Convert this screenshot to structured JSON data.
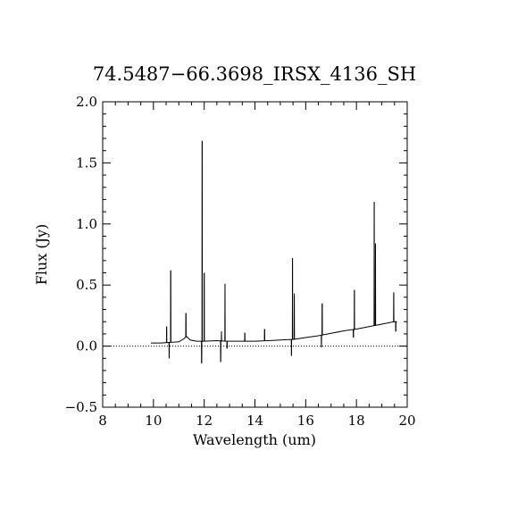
{
  "chart_data": {
    "type": "line",
    "title": "74.5487−66.3698_IRSX_4136_SH",
    "xlabel": "Wavelength (um)",
    "ylabel": "Flux (Jy)",
    "xlim": [
      8,
      20
    ],
    "ylim": [
      -0.5,
      2.0
    ],
    "x_ticks": [
      8,
      10,
      12,
      14,
      16,
      18,
      20
    ],
    "x_tick_labels": [
      "8",
      "10",
      "12",
      "14",
      "16",
      "18",
      "20"
    ],
    "y_ticks": [
      -0.5,
      0.0,
      0.5,
      1.0,
      1.5,
      2.0
    ],
    "y_tick_labels": [
      "−0.5",
      "0.0",
      "0.5",
      "1.0",
      "1.5",
      "2.0"
    ],
    "grid": false,
    "reference_line": {
      "y": 0,
      "style": "dotted"
    },
    "series": [
      {
        "color": "#000000",
        "continuum": [
          [
            9.9,
            0.025
          ],
          [
            10.3,
            0.025
          ],
          [
            10.6,
            0.03
          ],
          [
            11.0,
            0.035
          ],
          [
            11.2,
            0.06
          ],
          [
            11.3,
            0.08
          ],
          [
            11.45,
            0.05
          ],
          [
            11.7,
            0.04
          ],
          [
            12.0,
            0.04
          ],
          [
            12.5,
            0.045
          ],
          [
            12.9,
            0.04
          ],
          [
            13.5,
            0.04
          ],
          [
            14.0,
            0.04
          ],
          [
            14.5,
            0.045
          ],
          [
            15.0,
            0.05
          ],
          [
            15.5,
            0.055
          ],
          [
            16.0,
            0.07
          ],
          [
            16.5,
            0.085
          ],
          [
            17.0,
            0.105
          ],
          [
            17.5,
            0.125
          ],
          [
            18.0,
            0.14
          ],
          [
            18.5,
            0.16
          ],
          [
            19.0,
            0.18
          ],
          [
            19.5,
            0.2
          ],
          [
            19.6,
            0.2
          ]
        ],
        "emission_lines": [
          {
            "x": 10.52,
            "y": 0.16
          },
          {
            "x": 10.68,
            "y": 0.62
          },
          {
            "x": 11.28,
            "y": 0.27
          },
          {
            "x": 11.92,
            "y": 1.68
          },
          {
            "x": 12.0,
            "y": 0.6
          },
          {
            "x": 12.82,
            "y": 0.51
          },
          {
            "x": 12.68,
            "y": 0.12
          },
          {
            "x": 13.6,
            "y": 0.11
          },
          {
            "x": 14.38,
            "y": 0.14
          },
          {
            "x": 15.48,
            "y": 0.72
          },
          {
            "x": 15.55,
            "y": 0.43
          },
          {
            "x": 16.65,
            "y": 0.35
          },
          {
            "x": 17.92,
            "y": 0.46
          },
          {
            "x": 18.7,
            "y": 1.18
          },
          {
            "x": 18.75,
            "y": 0.84
          },
          {
            "x": 19.47,
            "y": 0.44
          }
        ],
        "absorption_dips": [
          {
            "x": 10.62,
            "y": -0.1
          },
          {
            "x": 11.9,
            "y": -0.14
          },
          {
            "x": 12.65,
            "y": -0.13
          },
          {
            "x": 12.9,
            "y": -0.02
          },
          {
            "x": 15.44,
            "y": -0.08
          },
          {
            "x": 16.62,
            "y": -0.01
          },
          {
            "x": 17.88,
            "y": 0.07
          },
          {
            "x": 19.55,
            "y": 0.12
          }
        ]
      }
    ]
  }
}
